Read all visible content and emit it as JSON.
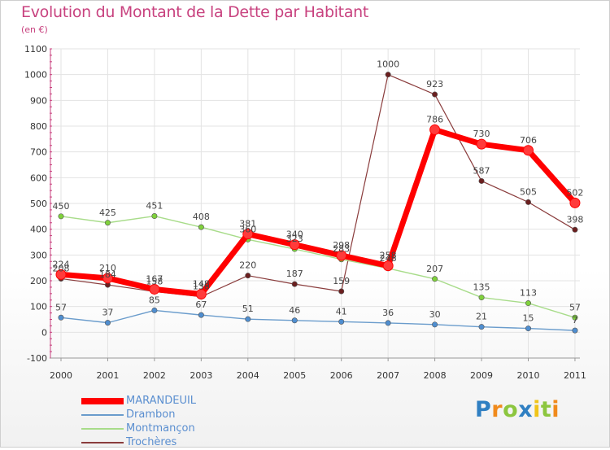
{
  "header": {
    "title": "Evolution du Montant de la Dette par Habitant",
    "subtitle": "(en €)"
  },
  "colors": {
    "title": "#c8427f",
    "legend_text": "#5b8fd0",
    "grid": "#e3e3e3",
    "axis_text": "#333333",
    "label_text": "#444444"
  },
  "logo": {
    "text": "Proxiti",
    "letters": [
      {
        "ch": "P",
        "color": "#2f7fc2"
      },
      {
        "ch": "r",
        "color": "#f08a1c"
      },
      {
        "ch": "o",
        "color": "#8cc63f"
      },
      {
        "ch": "x",
        "color": "#2f7fc2"
      },
      {
        "ch": "i",
        "color": "#f0c419"
      },
      {
        "ch": "t",
        "color": "#8cc63f"
      },
      {
        "ch": "i",
        "color": "#f08a1c"
      }
    ]
  },
  "chart_data": {
    "type": "line",
    "title": "Evolution du Montant de la Dette par Habitant",
    "subtitle": "(en €)",
    "xlabel": "",
    "ylabel": "",
    "x": [
      "2000",
      "2001",
      "2002",
      "2003",
      "2004",
      "2005",
      "2006",
      "2007",
      "2008",
      "2009",
      "2010",
      "2011"
    ],
    "ylim": [
      -100,
      1100
    ],
    "yticks": [
      -100,
      0,
      100,
      200,
      300,
      400,
      500,
      600,
      700,
      800,
      900,
      1000,
      1100
    ],
    "grid": true,
    "legend_position": "bottom-left",
    "series": [
      {
        "name": "MARANDEUIL",
        "color": "#ff0000",
        "marker": "#ff3b3b",
        "width": 7,
        "values": [
          224,
          210,
          167,
          148,
          381,
          340,
          298,
          258,
          786,
          730,
          706,
          502
        ]
      },
      {
        "name": "Drambon",
        "color": "#6a9ccc",
        "marker": "#4f8ed0",
        "width": 1.4,
        "values": [
          57,
          37,
          85,
          67,
          51,
          46,
          41,
          36,
          30,
          21,
          15,
          7
        ]
      },
      {
        "name": "Montmançon",
        "color": "#a8dc8a",
        "marker": "#7fd13b",
        "width": 1.4,
        "values": [
          450,
          425,
          451,
          408,
          360,
          323,
          283,
          248,
          207,
          135,
          113,
          57
        ]
      },
      {
        "name": "Trochères",
        "color": "#8a3c3c",
        "marker": "#6b1f1f",
        "width": 1.2,
        "values": [
          208,
          184,
          158,
          138,
          220,
          187,
          159,
          1000,
          923,
          587,
          505,
          398
        ]
      }
    ]
  }
}
